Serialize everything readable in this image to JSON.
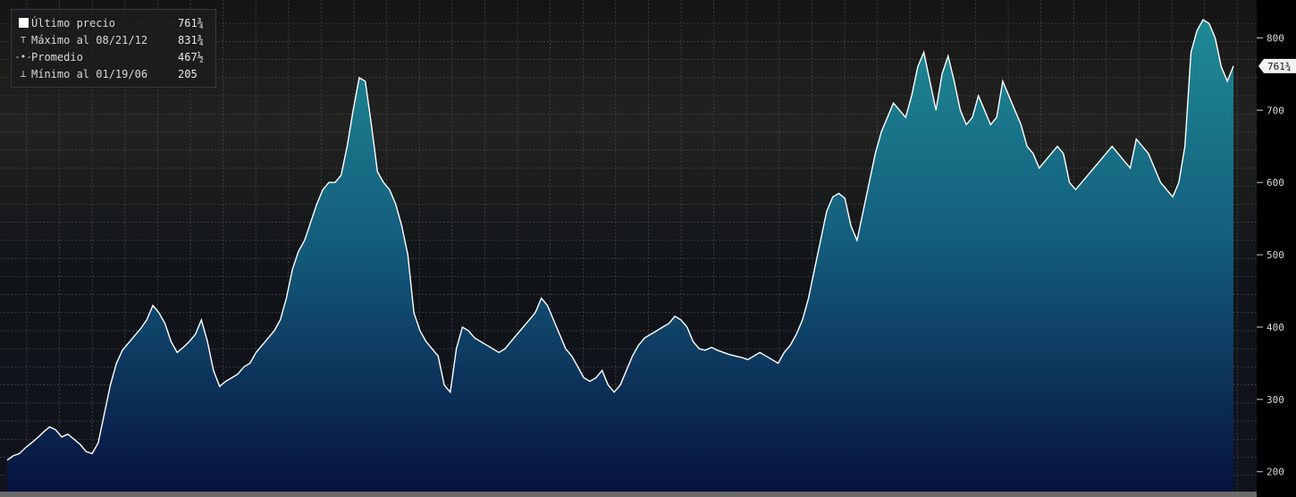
{
  "legend": {
    "items": [
      {
        "label": "Último precio",
        "value": "761¾",
        "marker": "box-icon"
      },
      {
        "label": "Máximo al 08/21/12",
        "value": "831¾",
        "marker": "max-marker-icon"
      },
      {
        "label": "Promedio",
        "value": "467½",
        "marker": "avg-marker-icon"
      },
      {
        "label": "Mínimo al 01/19/06",
        "value": "205",
        "marker": "min-marker-icon"
      }
    ]
  },
  "last_price_tag": "761¾",
  "colors": {
    "background": "#000000",
    "line": "#ffffff",
    "area_top": "#1f8a94",
    "area_bottom": "#07113f",
    "grid": "#4a4a4a"
  },
  "chart_data": {
    "type": "area",
    "title": "",
    "xlabel": "",
    "ylabel": "",
    "ylim": [
      170,
      840
    ],
    "y_ticks": [
      200,
      300,
      400,
      500,
      600,
      700,
      800
    ],
    "grid": true,
    "legend_position": "top-left",
    "series": [
      {
        "values": [
          216,
          222,
          225,
          233,
          240,
          247,
          255,
          262,
          258,
          248,
          252,
          245,
          238,
          228,
          225,
          240,
          280,
          320,
          350,
          368,
          378,
          388,
          398,
          410,
          430,
          420,
          405,
          380,
          365,
          372,
          380,
          390,
          410,
          380,
          340,
          318,
          325,
          330,
          335,
          345,
          350,
          365,
          375,
          385,
          395,
          410,
          440,
          480,
          505,
          520,
          545,
          570,
          590,
          600,
          600,
          610,
          650,
          700,
          745,
          740,
          680,
          615,
          600,
          590,
          570,
          540,
          500,
          420,
          395,
          380,
          370,
          360,
          320,
          310,
          370,
          400,
          395,
          385,
          380,
          375,
          370,
          365,
          370,
          380,
          390,
          400,
          410,
          420,
          440,
          430,
          410,
          390,
          370,
          360,
          345,
          330,
          325,
          330,
          340,
          320,
          310,
          320,
          340,
          360,
          375,
          385,
          390,
          395,
          400,
          405,
          415,
          410,
          400,
          380,
          370,
          368,
          372,
          368,
          365,
          362,
          360,
          358,
          355,
          360,
          365,
          360,
          355,
          350,
          365,
          375,
          390,
          410,
          440,
          480,
          520,
          560,
          580,
          585,
          578,
          540,
          520,
          560,
          600,
          640,
          670,
          690,
          710,
          700,
          690,
          720,
          760,
          780,
          740,
          700,
          750,
          775,
          740,
          700,
          680,
          690,
          720,
          700,
          680,
          690,
          740,
          720,
          700,
          680,
          650,
          640,
          620,
          630,
          640,
          650,
          640,
          600,
          590,
          600,
          610,
          620,
          630,
          640,
          650,
          640,
          630,
          620,
          660,
          650,
          640,
          620,
          600,
          590,
          580,
          600,
          650,
          780,
          810,
          825,
          820,
          800,
          760,
          740,
          761
        ]
      }
    ]
  }
}
